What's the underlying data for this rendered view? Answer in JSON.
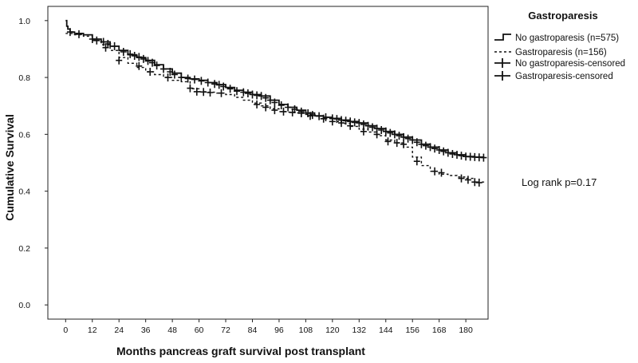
{
  "chart_data": {
    "type": "line",
    "title": "",
    "xlabel": "Months pancreas graft survival post transplant",
    "ylabel": "Cumulative Survival",
    "xlim": [
      -8,
      190
    ],
    "ylim": [
      -0.05,
      1.05
    ],
    "x_ticks": [
      0,
      12,
      24,
      36,
      48,
      60,
      72,
      84,
      96,
      108,
      120,
      132,
      144,
      156,
      168,
      180
    ],
    "y_ticks": [
      0.0,
      0.2,
      0.4,
      0.6,
      0.8,
      1.0
    ],
    "y_tick_labels": [
      "0.0",
      "0.2",
      "0.4",
      "0.6",
      "0.8",
      "1.0"
    ],
    "grid": false,
    "legend_title": "Gastroparesis",
    "legend_position": "top-right",
    "legend_entries": [
      {
        "label": "No gastroparesis (n=575)",
        "symbol": "step-solid"
      },
      {
        "label": "Gastroparesis (n=156)",
        "symbol": "step-dashed"
      },
      {
        "label": "No gastroparesis-censored",
        "symbol": "plus"
      },
      {
        "label": "Gastroparesis-censored",
        "symbol": "plus"
      }
    ],
    "annotation": "Log rank p=0.17",
    "series": [
      {
        "name": "No gastroparesis (n=575)",
        "style": "solid",
        "x": [
          0,
          0.5,
          1,
          2,
          4,
          8,
          12,
          16,
          20,
          24,
          28,
          32,
          36,
          40,
          44,
          48,
          52,
          56,
          60,
          64,
          68,
          72,
          76,
          80,
          84,
          88,
          92,
          96,
          100,
          104,
          108,
          112,
          116,
          120,
          124,
          128,
          132,
          136,
          140,
          144,
          148,
          152,
          156,
          160,
          164,
          168,
          172,
          176,
          180,
          184,
          188
        ],
        "y": [
          1.0,
          0.98,
          0.97,
          0.96,
          0.955,
          0.95,
          0.935,
          0.925,
          0.91,
          0.895,
          0.88,
          0.87,
          0.86,
          0.845,
          0.83,
          0.815,
          0.8,
          0.795,
          0.79,
          0.782,
          0.775,
          0.765,
          0.755,
          0.748,
          0.74,
          0.735,
          0.72,
          0.705,
          0.695,
          0.685,
          0.675,
          0.665,
          0.66,
          0.656,
          0.65,
          0.645,
          0.64,
          0.63,
          0.62,
          0.61,
          0.6,
          0.59,
          0.58,
          0.565,
          0.555,
          0.545,
          0.535,
          0.528,
          0.522,
          0.52,
          0.518
        ]
      },
      {
        "name": "Gastroparesis (n=156)",
        "style": "dashed",
        "x": [
          0,
          1,
          4,
          8,
          12,
          16,
          20,
          24,
          28,
          32,
          36,
          40,
          44,
          48,
          52,
          56,
          60,
          64,
          68,
          72,
          76,
          80,
          84,
          88,
          92,
          96,
          100,
          104,
          108,
          112,
          116,
          120,
          124,
          128,
          132,
          136,
          140,
          144,
          148,
          152,
          156,
          160,
          164,
          168,
          172,
          176,
          180,
          184,
          188
        ],
        "y": [
          0.955,
          0.955,
          0.95,
          0.945,
          0.93,
          0.915,
          0.895,
          0.87,
          0.85,
          0.835,
          0.82,
          0.81,
          0.8,
          0.79,
          0.785,
          0.76,
          0.75,
          0.748,
          0.745,
          0.74,
          0.73,
          0.72,
          0.71,
          0.7,
          0.69,
          0.68,
          0.678,
          0.675,
          0.67,
          0.665,
          0.655,
          0.645,
          0.638,
          0.628,
          0.618,
          0.608,
          0.595,
          0.58,
          0.57,
          0.555,
          0.52,
          0.49,
          0.47,
          0.46,
          0.455,
          0.45,
          0.445,
          0.432,
          0.43
        ]
      }
    ],
    "censored": [
      {
        "name": "No gastroparesis-censored",
        "x": [
          2,
          6,
          12,
          14,
          17,
          19,
          22,
          26,
          29,
          31,
          33,
          35,
          37,
          39,
          41,
          44,
          47,
          49,
          52,
          55,
          58,
          61,
          64,
          67,
          69,
          71,
          74,
          77,
          80,
          82,
          84,
          86,
          88,
          90,
          92,
          94,
          97,
          100,
          103,
          106,
          109,
          111,
          114,
          117,
          120,
          122,
          124,
          126,
          128,
          130,
          132,
          134,
          136,
          138,
          140,
          142,
          144,
          146,
          148,
          150,
          152,
          154,
          156,
          158,
          160,
          162,
          164,
          166,
          168,
          170,
          172,
          174,
          176,
          178,
          180,
          182,
          184,
          186,
          188
        ],
        "y": [
          0.96,
          0.952,
          0.935,
          0.93,
          0.925,
          0.918,
          0.91,
          0.89,
          0.882,
          0.876,
          0.872,
          0.865,
          0.858,
          0.852,
          0.842,
          0.83,
          0.82,
          0.81,
          0.8,
          0.796,
          0.793,
          0.788,
          0.782,
          0.777,
          0.774,
          0.768,
          0.76,
          0.752,
          0.748,
          0.744,
          0.74,
          0.737,
          0.735,
          0.728,
          0.72,
          0.712,
          0.702,
          0.695,
          0.688,
          0.68,
          0.674,
          0.668,
          0.664,
          0.66,
          0.656,
          0.654,
          0.65,
          0.648,
          0.645,
          0.642,
          0.64,
          0.635,
          0.63,
          0.625,
          0.62,
          0.615,
          0.61,
          0.605,
          0.6,
          0.595,
          0.59,
          0.585,
          0.58,
          0.572,
          0.565,
          0.56,
          0.555,
          0.55,
          0.545,
          0.54,
          0.535,
          0.531,
          0.528,
          0.525,
          0.522,
          0.521,
          0.52,
          0.519,
          0.518
        ]
      },
      {
        "name": "Gastroparesis-censored",
        "x": [
          18,
          24,
          33,
          38,
          46,
          56,
          59,
          62,
          65,
          70,
          86,
          90,
          94,
          98,
          102,
          106,
          110,
          116,
          120,
          124,
          128,
          134,
          140,
          145,
          149,
          152,
          158,
          166,
          169,
          178,
          181,
          184,
          186
        ],
        "y": [
          0.905,
          0.86,
          0.84,
          0.82,
          0.8,
          0.762,
          0.75,
          0.749,
          0.747,
          0.745,
          0.705,
          0.695,
          0.685,
          0.68,
          0.677,
          0.674,
          0.665,
          0.655,
          0.645,
          0.64,
          0.63,
          0.61,
          0.6,
          0.575,
          0.57,
          0.565,
          0.505,
          0.47,
          0.465,
          0.445,
          0.44,
          0.432,
          0.43
        ]
      }
    ]
  }
}
